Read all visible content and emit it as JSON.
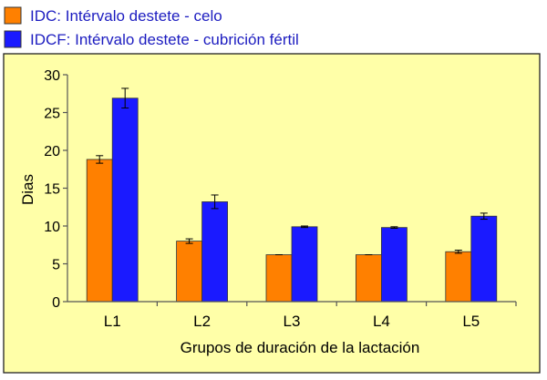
{
  "chart_data": {
    "type": "bar",
    "xlabel": "Grupos de duración de la lactación",
    "ylabel": "Dias",
    "ylim": [
      0,
      30
    ],
    "yticks": [
      "0",
      "5",
      "10",
      "15",
      "20",
      "25",
      "30"
    ],
    "categories": [
      "L1",
      "L2",
      "L3",
      "L4",
      "L5"
    ],
    "grid": false,
    "legend_position": "top-left",
    "plot_background": "#FFFFA8",
    "series": [
      {
        "name": "IDC: Intérvalo destete - celo",
        "color": "#FF8000",
        "values": [
          18.8,
          8.0,
          6.2,
          6.2,
          6.6
        ],
        "error": [
          0.5,
          0.3,
          0.0,
          0.0,
          0.2
        ]
      },
      {
        "name": "IDCF: Intérvalo destete - cubrición fértil",
        "color": "#1A1AFF",
        "values": [
          26.9,
          13.2,
          9.9,
          9.8,
          11.3
        ],
        "error": [
          1.3,
          0.9,
          0.1,
          0.1,
          0.4
        ]
      }
    ]
  }
}
